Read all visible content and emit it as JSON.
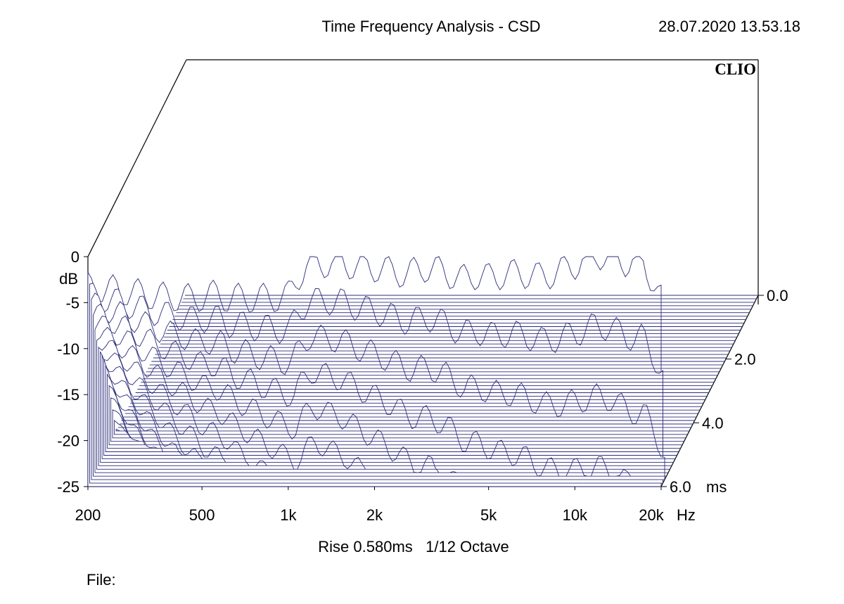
{
  "header": {
    "title": "Time Frequency Analysis - CSD",
    "timestamp": "28.07.2020 13.53.18",
    "brand": "CLIO"
  },
  "footer": {
    "settings": "Rise 0.580ms   1/12 Octave",
    "file_label": "File:"
  },
  "colors": {
    "trace": "#2b2d7a",
    "frame": "#000000",
    "background": "#ffffff"
  },
  "chart_data": {
    "type": "waterfall",
    "title": "Time Frequency Analysis - CSD",
    "xlabel": "Hz",
    "ylabel": "dB",
    "zlabel": "ms",
    "x_scale": "log",
    "xlim": [
      200,
      20000
    ],
    "ylim": [
      -25,
      0
    ],
    "zlim": [
      0,
      6.0
    ],
    "x_ticks": [
      200,
      500,
      1000,
      2000,
      5000,
      10000,
      20000
    ],
    "x_tick_labels": [
      "200",
      "500",
      "1k",
      "2k",
      "5k",
      "10k",
      "20k"
    ],
    "y_ticks": [
      0,
      -5,
      -10,
      -15,
      -20,
      -25
    ],
    "y_tick_labels": [
      "0",
      "-5",
      "-10",
      "-15",
      "-20",
      "-25"
    ],
    "z_ticks": [
      0.0,
      2.0,
      4.0,
      6.0
    ],
    "z_tick_labels": [
      "0.0",
      "2.0",
      "4.0",
      "6.0"
    ],
    "slice_count": 56,
    "initial_response": {
      "freq_hz": [
        200,
        250,
        300,
        350,
        380,
        420,
        470,
        520,
        570,
        620,
        700,
        770,
        850,
        930,
        1000,
        1080,
        1150,
        1300,
        1500,
        1700,
        2000,
        2300,
        2600,
        3000,
        3500,
        4000,
        4500,
        5000,
        5700,
        6500,
        7500,
        8500,
        10000,
        11500,
        13000,
        15000,
        17000,
        19000,
        20000
      ],
      "level_db": [
        -3.3,
        -3.6,
        -4.0,
        -4.3,
        -4.4,
        -4.4,
        -4.6,
        -4.2,
        -4.1,
        -4.6,
        -4.4,
        -4.6,
        -4.4,
        -4.5,
        -4.3,
        -2.3,
        -1.0,
        -0.8,
        -0.6,
        -1.0,
        -1.2,
        -1.6,
        -1.9,
        -1.2,
        -1.6,
        -2.5,
        -2.0,
        -2.3,
        -1.9,
        -1.8,
        -2.2,
        -1.8,
        -0.9,
        0.1,
        0.2,
        -0.6,
        -0.5,
        -2.8,
        -4.5
      ]
    }
  }
}
